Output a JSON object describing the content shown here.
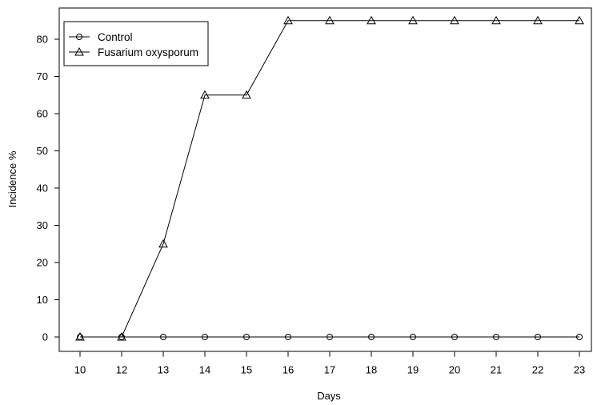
{
  "chart_data": {
    "type": "line",
    "xlabel": "Days",
    "ylabel": "Incidence %",
    "categories": [
      "10",
      "12",
      "13",
      "14",
      "15",
      "16",
      "17",
      "18",
      "19",
      "20",
      "21",
      "22",
      "23"
    ],
    "yticks": [
      0,
      10,
      20,
      30,
      40,
      50,
      60,
      70,
      80
    ],
    "ylim": [
      -4,
      88
    ],
    "grid": false,
    "legend_position": "top-left",
    "series": [
      {
        "name": "Control",
        "marker": "circle",
        "values": [
          0,
          0,
          0,
          0,
          0,
          0,
          0,
          0,
          0,
          0,
          0,
          0,
          0
        ]
      },
      {
        "name": "Fusarium oxysporum",
        "marker": "triangle",
        "values": [
          0,
          0,
          25,
          65,
          65,
          85,
          85,
          85,
          85,
          85,
          85,
          85,
          85
        ]
      }
    ]
  }
}
